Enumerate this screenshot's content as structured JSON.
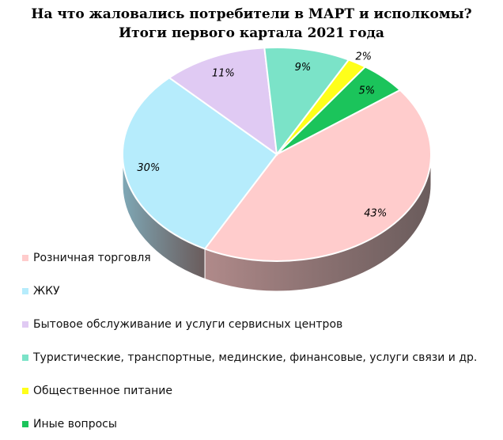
{
  "title": {
    "line1": "На что жаловались потребители в МАРТ и исполкомы?",
    "line2": "Итоги первого картала 2021 года"
  },
  "chart_data": {
    "type": "pie",
    "title": "На что жаловались потребители в МАРТ и исполкомы? Итоги первого картала 2021 года",
    "legend_position": "bottom-left",
    "slices": [
      {
        "label": "Розничная торговля",
        "value": 43,
        "display": "43%",
        "color": "#FFCCCC",
        "side": "#B08A8A"
      },
      {
        "label": "ЖКУ",
        "value": 30,
        "display": "30%",
        "color": "#B6ECFC",
        "side": "#7FA8B6"
      },
      {
        "label": "Бытовое обслуживание и услуги сервисных центров",
        "value": 11,
        "display": "11%",
        "color": "#E0CAF3",
        "side": "#A08FB0"
      },
      {
        "label": "Туристические, транспортные, мединские, финансовые, услуги связи и др.",
        "value": 9,
        "display": "9%",
        "color": "#7BE3C8",
        "side": "#4FA28C"
      },
      {
        "label": "Общественное питание",
        "value": 2,
        "display": "2%",
        "color": "#FFFF1A",
        "side": "#B3B312"
      },
      {
        "label": "Иные вопросы",
        "value": 5,
        "display": "5%",
        "color": "#1BC45B",
        "side": "#12883F"
      }
    ]
  }
}
